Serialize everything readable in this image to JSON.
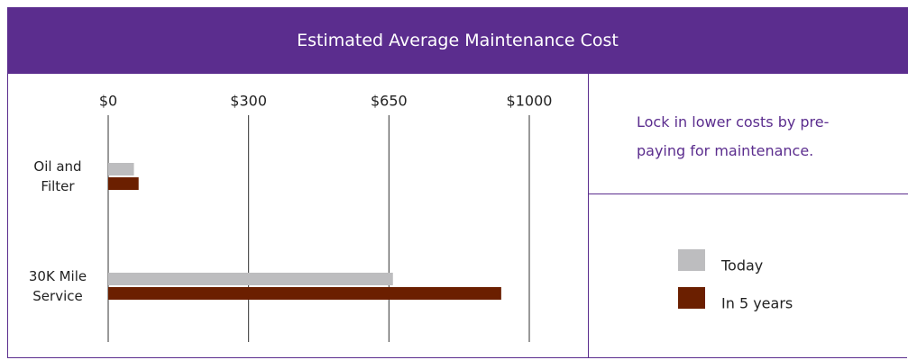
{
  "chart_data": {
    "type": "bar",
    "orientation": "horizontal",
    "title": "Estimated Average Maintenance Cost",
    "note": "Lock in lower costs by pre-paying for maintenance.",
    "categories": [
      "Oil and Filter",
      "30K Mile Service"
    ],
    "series": [
      {
        "name": "Today",
        "color": "#bdbdbf",
        "values": [
          55,
          660
        ]
      },
      {
        "name": "In 5 years",
        "color": "#6b1f00",
        "values": [
          65,
          930
        ]
      }
    ],
    "xlim": [
      0,
      1000
    ],
    "xticks": [
      {
        "value": 0,
        "label": "$0"
      },
      {
        "value": 300,
        "label": "$300"
      },
      {
        "value": 650,
        "label": "$650"
      },
      {
        "value": 1000,
        "label": "$1000"
      }
    ],
    "grid": true
  }
}
